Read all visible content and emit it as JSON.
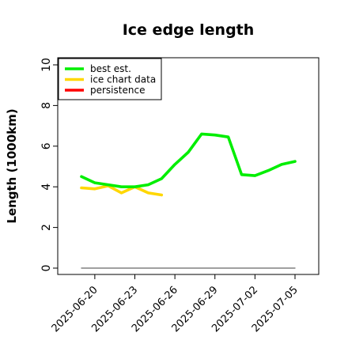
{
  "chart_data": {
    "type": "line",
    "title": "Ice edge length",
    "xlabel": "",
    "ylabel": "Length (1000km)",
    "ylim": [
      0,
      10
    ],
    "yticks": [
      0,
      2,
      4,
      6,
      8,
      10
    ],
    "xticks": [
      "2025-06-20",
      "2025-06-23",
      "2025-06-26",
      "2025-06-29",
      "2025-07-02",
      "2025-07-05"
    ],
    "x_dates": [
      "2025-06-19",
      "2025-06-20",
      "2025-06-21",
      "2025-06-22",
      "2025-06-23",
      "2025-06-24",
      "2025-06-25",
      "2025-06-26",
      "2025-06-27",
      "2025-06-28",
      "2025-06-29",
      "2025-06-30",
      "2025-07-01",
      "2025-07-02",
      "2025-07-03",
      "2025-07-04",
      "2025-07-05"
    ],
    "series": [
      {
        "name": "best est.",
        "color": "#00ee00",
        "values": [
          4.5,
          4.2,
          4.1,
          4.0,
          4.0,
          4.1,
          4.4,
          5.1,
          5.7,
          6.6,
          6.55,
          6.45,
          4.6,
          4.55,
          4.8,
          5.1,
          5.25
        ]
      },
      {
        "name": "ice chart data",
        "color": "#ffd700",
        "values": [
          3.95,
          3.9,
          4.05,
          3.7,
          4.0,
          3.7,
          3.6,
          null,
          null,
          null,
          null,
          null,
          null,
          null,
          null,
          null,
          null
        ]
      },
      {
        "name": "persistence",
        "color": "#ff0000",
        "values": [
          null,
          null,
          null,
          null,
          null,
          null,
          null,
          null,
          null,
          null,
          null,
          null,
          null,
          null,
          null,
          null,
          null
        ]
      },
      {
        "name": "",
        "color": "#808080",
        "values": [
          0,
          0,
          0,
          0,
          0,
          0,
          0,
          0,
          0,
          0,
          0,
          0,
          0,
          0,
          0,
          0,
          0
        ]
      }
    ],
    "legend_position": "top-left"
  }
}
